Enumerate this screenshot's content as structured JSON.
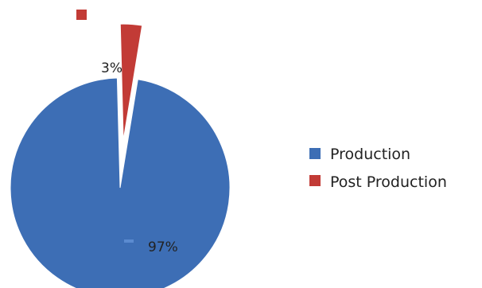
{
  "chart_data": {
    "type": "pie",
    "categories": [
      "Production",
      "Post Production"
    ],
    "values": [
      97,
      3
    ],
    "value_labels": [
      "97%",
      "3%"
    ],
    "colors": [
      "#3d6eb5",
      "#c23b36"
    ],
    "exploded": [
      false,
      true
    ],
    "legend_position": "right",
    "title": ""
  },
  "legend": {
    "items": [
      {
        "label": "Production",
        "color": "#3d6eb5"
      },
      {
        "label": "Post Production",
        "color": "#c23b36"
      }
    ]
  },
  "stray_marker_color": "#c23b36"
}
